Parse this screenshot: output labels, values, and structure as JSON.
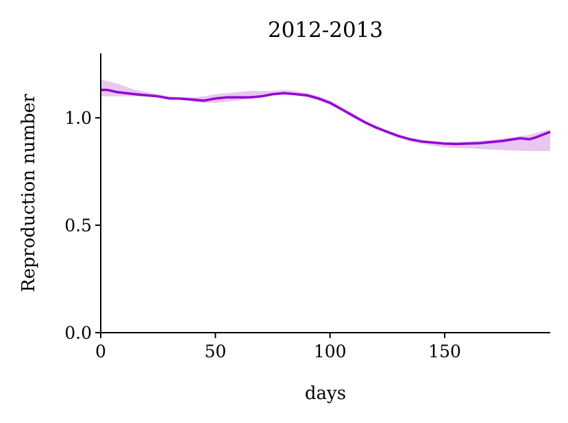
{
  "chart_data": {
    "type": "line",
    "title": "2012-2013",
    "xlabel": "days",
    "ylabel": "Reproduction number",
    "xlim": [
      0,
      196
    ],
    "ylim": [
      0.0,
      1.3
    ],
    "x_ticks": [
      0,
      50,
      100,
      150
    ],
    "x_tick_labels": [
      "0",
      "50",
      "100",
      "150"
    ],
    "y_ticks": [
      0.0,
      0.5,
      1.0
    ],
    "y_tick_labels": [
      "0.0",
      "0.5",
      "1.0"
    ],
    "grid": false,
    "legend": "none",
    "colors": {
      "line": "#9400d3",
      "band": "#e8c8ee"
    },
    "series": [
      {
        "x": [
          0,
          3,
          7,
          15,
          25,
          30,
          34,
          40,
          45,
          50,
          55,
          60,
          65,
          70,
          75,
          80,
          85,
          90,
          95,
          100,
          105,
          110,
          115,
          120,
          125,
          130,
          135,
          140,
          145,
          150,
          155,
          160,
          165,
          170,
          175,
          180,
          183,
          187,
          190,
          196
        ],
        "y": [
          1.13,
          1.13,
          1.12,
          1.11,
          1.1,
          1.09,
          1.09,
          1.085,
          1.08,
          1.09,
          1.095,
          1.095,
          1.095,
          1.1,
          1.11,
          1.115,
          1.11,
          1.105,
          1.09,
          1.07,
          1.04,
          1.01,
          0.98,
          0.955,
          0.935,
          0.915,
          0.9,
          0.89,
          0.885,
          0.88,
          0.878,
          0.88,
          0.882,
          0.887,
          0.892,
          0.9,
          0.905,
          0.9,
          0.91,
          0.935
        ],
        "lower": [
          1.1,
          1.1,
          1.1,
          1.1,
          1.095,
          1.09,
          1.085,
          1.075,
          1.07,
          1.07,
          1.075,
          1.08,
          1.09,
          1.1,
          1.105,
          1.108,
          1.105,
          1.095,
          1.08,
          1.06,
          1.035,
          1.0,
          0.975,
          0.95,
          0.925,
          0.905,
          0.89,
          0.878,
          0.87,
          0.863,
          0.86,
          0.858,
          0.855,
          0.852,
          0.85,
          0.848,
          0.847,
          0.846,
          0.845,
          0.845
        ],
        "upper": [
          1.18,
          1.17,
          1.16,
          1.13,
          1.11,
          1.1,
          1.095,
          1.095,
          1.1,
          1.11,
          1.115,
          1.12,
          1.125,
          1.125,
          1.125,
          1.13,
          1.125,
          1.115,
          1.1,
          1.08,
          1.05,
          1.02,
          0.99,
          0.965,
          0.94,
          0.92,
          0.905,
          0.895,
          0.89,
          0.887,
          0.887,
          0.89,
          0.893,
          0.898,
          0.903,
          0.91,
          0.915,
          0.92,
          0.93,
          0.945
        ]
      }
    ]
  }
}
